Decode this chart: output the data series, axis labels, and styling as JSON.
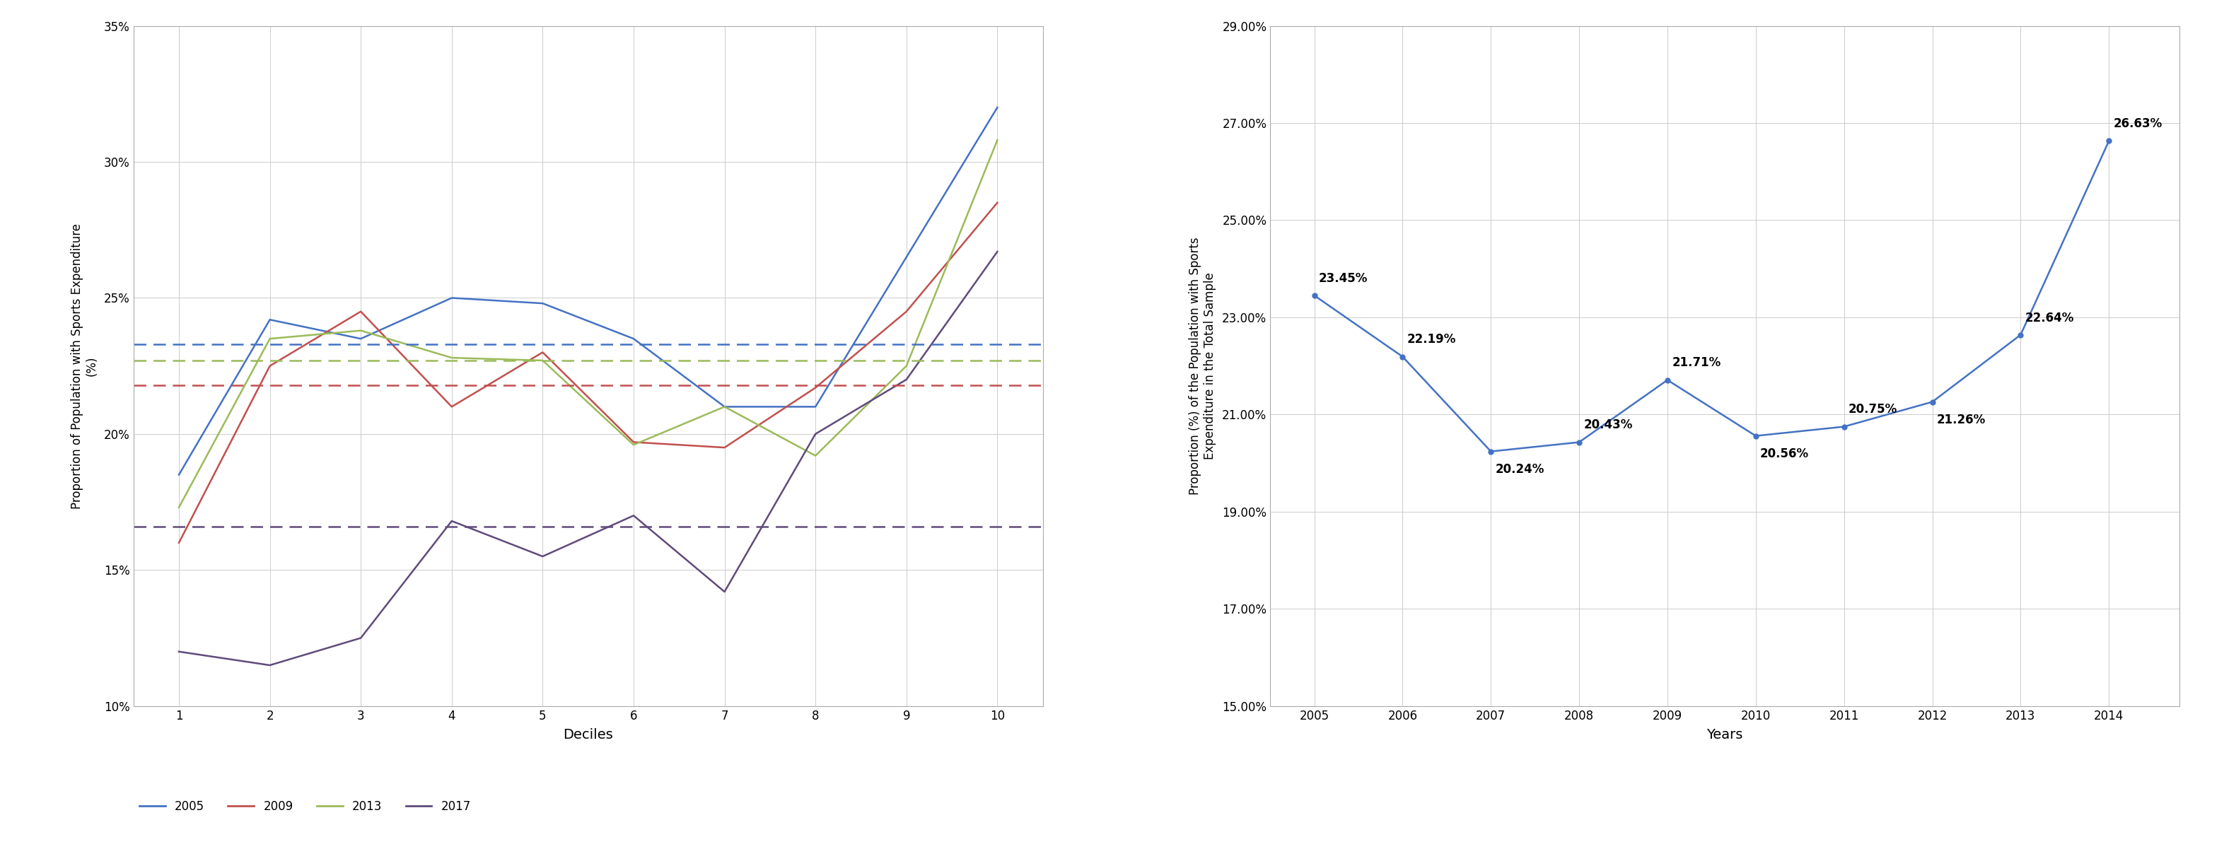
{
  "left_chart": {
    "xlabel": "Deciles",
    "ylabel": "Proportion of Population with Sports Expenditure\n(%)",
    "deciles": [
      1,
      2,
      3,
      4,
      5,
      6,
      7,
      8,
      9,
      10
    ],
    "series": {
      "2005": [
        18.5,
        24.2,
        23.5,
        25.0,
        24.8,
        23.5,
        21.0,
        21.0,
        26.5,
        32.0
      ],
      "2009": [
        16.0,
        22.5,
        24.5,
        21.0,
        23.0,
        19.7,
        19.5,
        21.7,
        24.5,
        28.5
      ],
      "2013": [
        17.3,
        23.5,
        23.8,
        22.8,
        22.7,
        19.6,
        21.0,
        19.2,
        22.5,
        30.8
      ],
      "2017": [
        12.0,
        11.5,
        12.5,
        16.8,
        15.5,
        17.0,
        14.2,
        20.0,
        22.0,
        26.7
      ]
    },
    "averages": {
      "2005": 23.3,
      "2009": 21.8,
      "2013": 22.7,
      "2017": 16.6
    },
    "colors": {
      "2005": "#4472C4",
      "2009": "#C0504D",
      "2013": "#9BBB59",
      "2017": "#604A7B"
    },
    "ylim": [
      10,
      35
    ],
    "yticks": [
      10,
      15,
      20,
      25,
      30,
      35
    ],
    "ytick_labels": [
      "10%",
      "15%",
      "20%",
      "25%",
      "30%",
      "35%"
    ]
  },
  "right_chart": {
    "xlabel": "Years",
    "ylabel": "Proportion (%) of the Population with Sports\nExpenditure in the Total Sample",
    "years": [
      2005,
      2006,
      2007,
      2008,
      2009,
      2010,
      2011,
      2012,
      2013,
      2014
    ],
    "values": [
      23.45,
      22.19,
      20.24,
      20.43,
      21.71,
      20.56,
      20.75,
      21.26,
      22.64,
      26.63
    ],
    "color": "#4472C4",
    "ylim": [
      15.0,
      29.0
    ],
    "yticks": [
      15.0,
      17.0,
      19.0,
      21.0,
      23.0,
      25.0,
      27.0,
      29.0
    ],
    "ytick_labels": [
      "15.00%",
      "17.00%",
      "19.00%",
      "21.00%",
      "23.00%",
      "25.00%",
      "27.00%",
      "29.00%"
    ],
    "annot_labels": [
      "23.45%",
      "22.19%",
      "20.24%",
      "20.43%",
      "21.71%",
      "20.56%",
      "20.75%",
      "21.26%",
      "22.64%",
      "26.63%"
    ],
    "annot_dx": [
      0.05,
      0.05,
      0.05,
      0.05,
      0.05,
      0.05,
      0.05,
      0.05,
      0.05,
      0.05
    ],
    "annot_dy": [
      0.22,
      0.22,
      -0.5,
      0.22,
      0.22,
      -0.5,
      0.22,
      -0.5,
      0.22,
      0.22
    ]
  }
}
